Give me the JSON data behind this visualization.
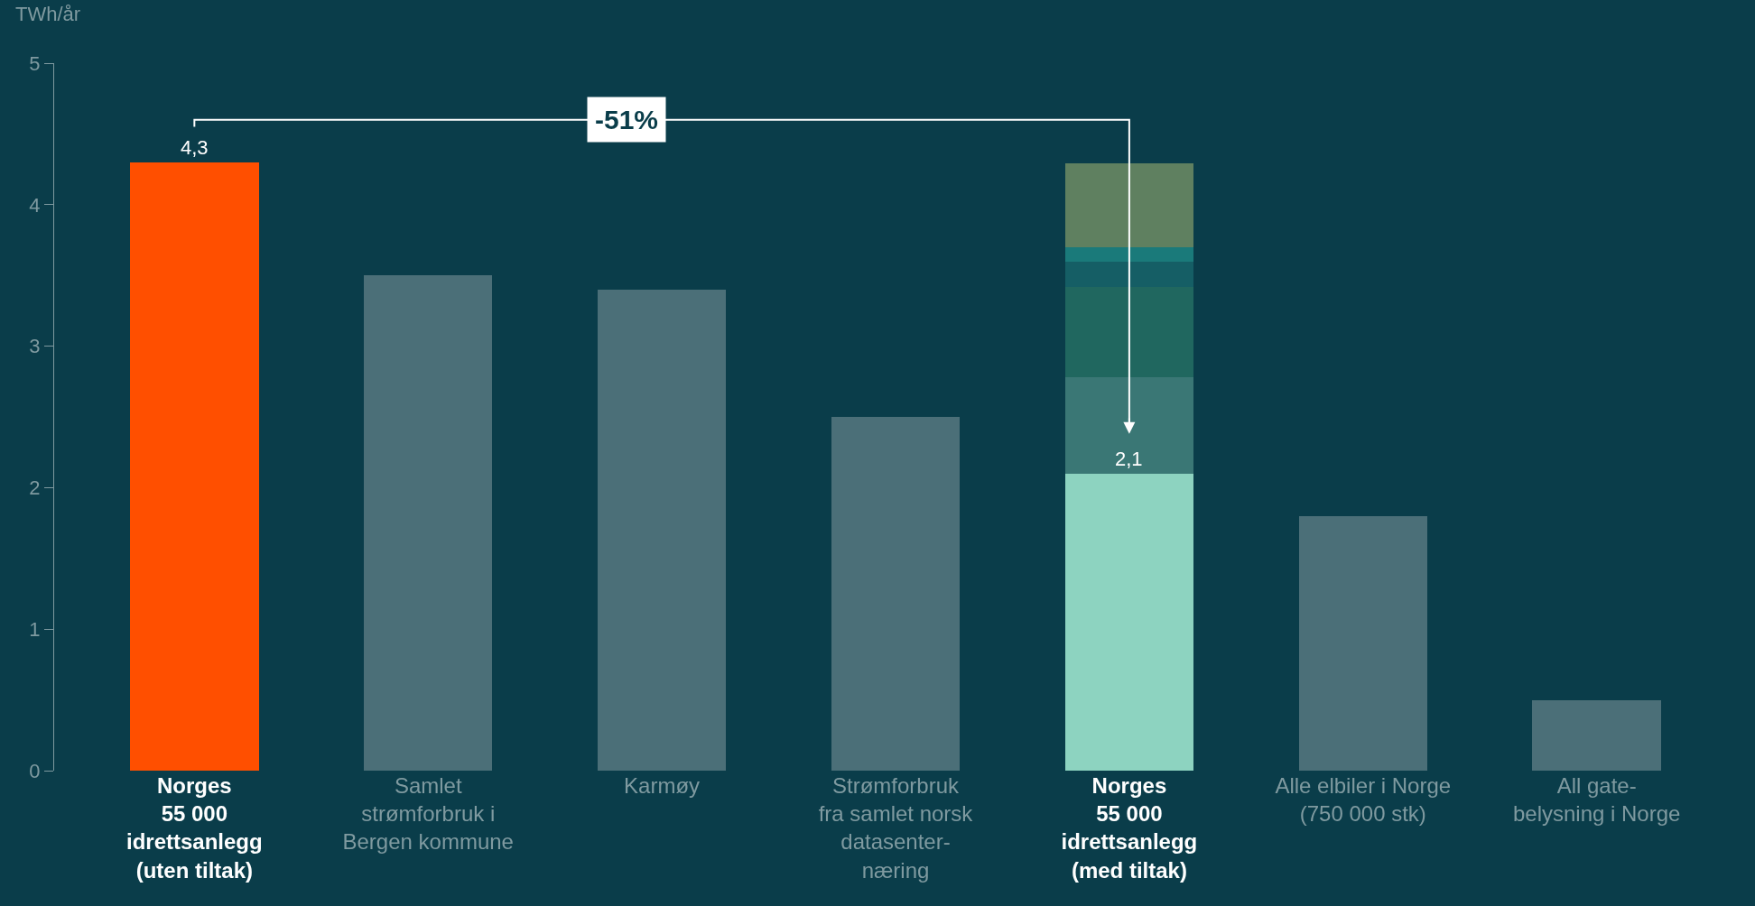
{
  "chart_data": {
    "type": "bar",
    "stacked": true,
    "ylabel": "TWh/år",
    "categories": [
      "Norges\n55 000\nidrettsanlegg\n(uten tiltak)",
      "Samlet\nstrømforbruk i\nBergen kommune",
      "Karmøy",
      "Strømforbruk\nfra samlet norsk\ndatasenter-\nnæring",
      "Norges\n55 000\nidrettsanlegg\n(med tiltak)",
      "Alle elbiler i Norge\n(750 000 stk)",
      "All gate-\nbelysning i Norge"
    ],
    "series": [
      {
        "values": [
          4.3,
          3.5,
          3.4,
          2.5,
          2.1,
          1.8,
          0.5
        ],
        "colors": [
          "#ff4f00",
          "#4b6f78",
          "#4b6f78",
          "#4b6f78",
          "#8dd3c0",
          "#4b6f78",
          "#4b6f78"
        ],
        "value_labels": [
          "4,3",
          null,
          null,
          null,
          "2,1",
          null,
          null
        ]
      },
      {
        "color": "#3a7775",
        "values": [
          null,
          null,
          null,
          null,
          0.68,
          null,
          null
        ]
      },
      {
        "color": "#20675f",
        "values": [
          null,
          null,
          null,
          null,
          0.64,
          null,
          null
        ]
      },
      {
        "color": "#155e65",
        "values": [
          null,
          null,
          null,
          null,
          0.18,
          null,
          null
        ]
      },
      {
        "color": "#1a7a7a",
        "values": [
          null,
          null,
          null,
          null,
          0.1,
          null,
          null
        ]
      },
      {
        "color": "#5f8060",
        "values": [
          null,
          null,
          null,
          null,
          0.59,
          null,
          null
        ]
      }
    ],
    "annotations": [
      "-51%"
    ],
    "ylim": [
      0,
      5
    ],
    "yticks": [
      0,
      1,
      2,
      3,
      4,
      5
    ],
    "grid": false
  }
}
